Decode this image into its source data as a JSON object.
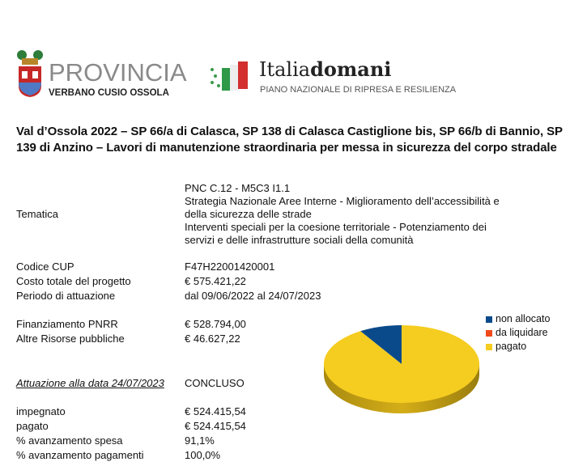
{
  "logos": {
    "provincia": "PROVINCIA",
    "provincia_sub": "VERBANO CUSIO OSSOLA",
    "italia_a": "Italia",
    "italia_b": "domani",
    "pnrr": "PIANO NAZIONALE DI RIPRESA E RESILIENZA"
  },
  "title": "Val d’Ossola 2022 – SP 66/a di Calasca, SP 138 di Calasca Castiglione bis, SP 66/b di Bannio, SP 139 di Anzino – Lavori di manutenzione straordinaria per messa in sicurezza del corpo stradale",
  "tematica": {
    "label": "Tematica",
    "lines": [
      "PNC C.12 - M5C3 I1.1",
      "Strategia Nazionale Aree Interne - Miglioramento dell’accessibilità e",
      "della sicurezza delle strade",
      "Interventi speciali per la coesione territoriale - Potenziamento dei",
      "servizi e delle infrastrutture sociali della comunità"
    ]
  },
  "rows1": [
    {
      "label": "Codice CUP",
      "value": "F47H22001420001"
    },
    {
      "label": "Costo totale del progetto",
      "value": "€ 575.421,22"
    },
    {
      "label": "Periodo di attuazione",
      "value": "dal 09/06/2022 al 24/07/2023"
    }
  ],
  "rows2": [
    {
      "label": "Finanziamento PNRR",
      "value": "€ 528.794,00"
    },
    {
      "label": "Altre Risorse pubbliche",
      "value": "€ 46.627,22"
    }
  ],
  "attuazione": {
    "label": "Attuazione alla data 24/07/2023",
    "value": "CONCLUSO"
  },
  "rows3": [
    {
      "label": "impegnato",
      "value": "€ 524.415,54"
    },
    {
      "label": "pagato",
      "value": "€ 524.415,54"
    },
    {
      "label": "% avanzamento spesa",
      "value": "91,1%"
    },
    {
      "label": "% avanzamento pagamenti",
      "value": "100,0%"
    }
  ],
  "chart_data": {
    "type": "pie",
    "legend_position": "top-right",
    "categories": [
      "non allocato",
      "da liquidare",
      "pagato"
    ],
    "values": [
      8.9,
      0,
      91.1
    ],
    "colors": [
      "#0a4a8a",
      "#f04a1a",
      "#f5cc20"
    ]
  }
}
